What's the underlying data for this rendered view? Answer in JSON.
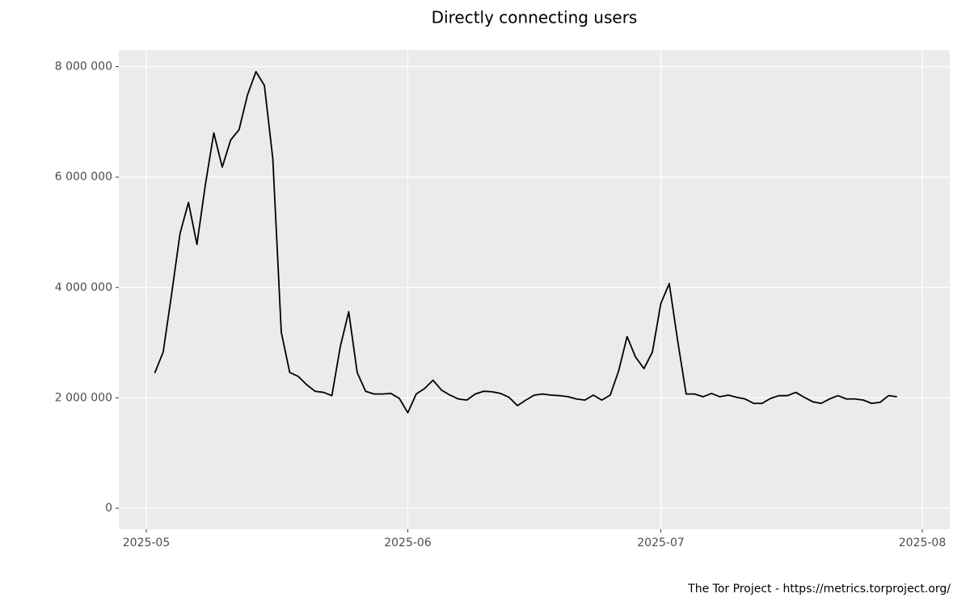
{
  "chart_data": {
    "type": "line",
    "title": "Directly connecting users",
    "caption": "The Tor Project - https://metrics.torproject.org/",
    "categories": [
      "2025-05",
      null,
      null,
      null,
      null,
      null,
      null,
      null,
      null,
      null,
      null,
      null,
      null,
      null,
      null,
      null,
      null,
      null,
      null,
      null,
      null,
      null,
      null,
      null,
      null,
      null,
      null,
      null,
      null,
      null,
      null,
      "2025-06",
      null,
      null,
      null,
      null,
      null,
      null,
      null,
      null,
      null,
      null,
      null,
      null,
      null,
      null,
      null,
      null,
      null,
      null,
      null,
      null,
      null,
      null,
      null,
      null,
      null,
      null,
      null,
      null,
      null,
      "2025-07",
      null,
      null,
      null,
      null,
      null,
      null,
      null,
      null,
      null,
      null,
      null,
      null,
      null,
      null,
      null,
      null,
      null,
      null,
      null,
      null,
      null,
      null,
      null,
      null,
      null,
      null,
      null,
      null,
      null,
      null,
      "2025-08"
    ],
    "series": [
      {
        "name": "Directly connecting users",
        "color": "#000000",
        "values": [
          null,
          2450000,
          2830000,
          3880000,
          4980000,
          5540000,
          4780000,
          5860000,
          6800000,
          6180000,
          6670000,
          6860000,
          7490000,
          7910000,
          7660000,
          6330000,
          3190000,
          2460000,
          2390000,
          2240000,
          2120000,
          2100000,
          2040000,
          2930000,
          3560000,
          2460000,
          2120000,
          2070000,
          2070000,
          2080000,
          1990000,
          1730000,
          2070000,
          2170000,
          2320000,
          2140000,
          2050000,
          1980000,
          1960000,
          2070000,
          2120000,
          2110000,
          2080000,
          2010000,
          1860000,
          1960000,
          2050000,
          2070000,
          2050000,
          2040000,
          2020000,
          1980000,
          1960000,
          2050000,
          1960000,
          2050000,
          2490000,
          3110000,
          2740000,
          2530000,
          2830000,
          3710000,
          4070000,
          3030000,
          2070000,
          2070000,
          2020000,
          2080000,
          2020000,
          2050000,
          2010000,
          1980000,
          1900000,
          1900000,
          1990000,
          2040000,
          2040000,
          2100000,
          2010000,
          1930000,
          1900000,
          1980000,
          2040000,
          1980000,
          1980000,
          1960000,
          1900000,
          1920000,
          2040000,
          2020000,
          null,
          null,
          null
        ]
      }
    ],
    "ylim": [
      -380000,
      8300000
    ],
    "yticks": [
      0,
      {
        "value": 2000000,
        "label": "2 000 000"
      },
      {
        "value": 4000000,
        "label": "4 000 000"
      },
      {
        "value": 6000000,
        "label": "6 000 000"
      },
      {
        "value": 8000000,
        "label": "8 000 000"
      }
    ],
    "grid": true
  }
}
